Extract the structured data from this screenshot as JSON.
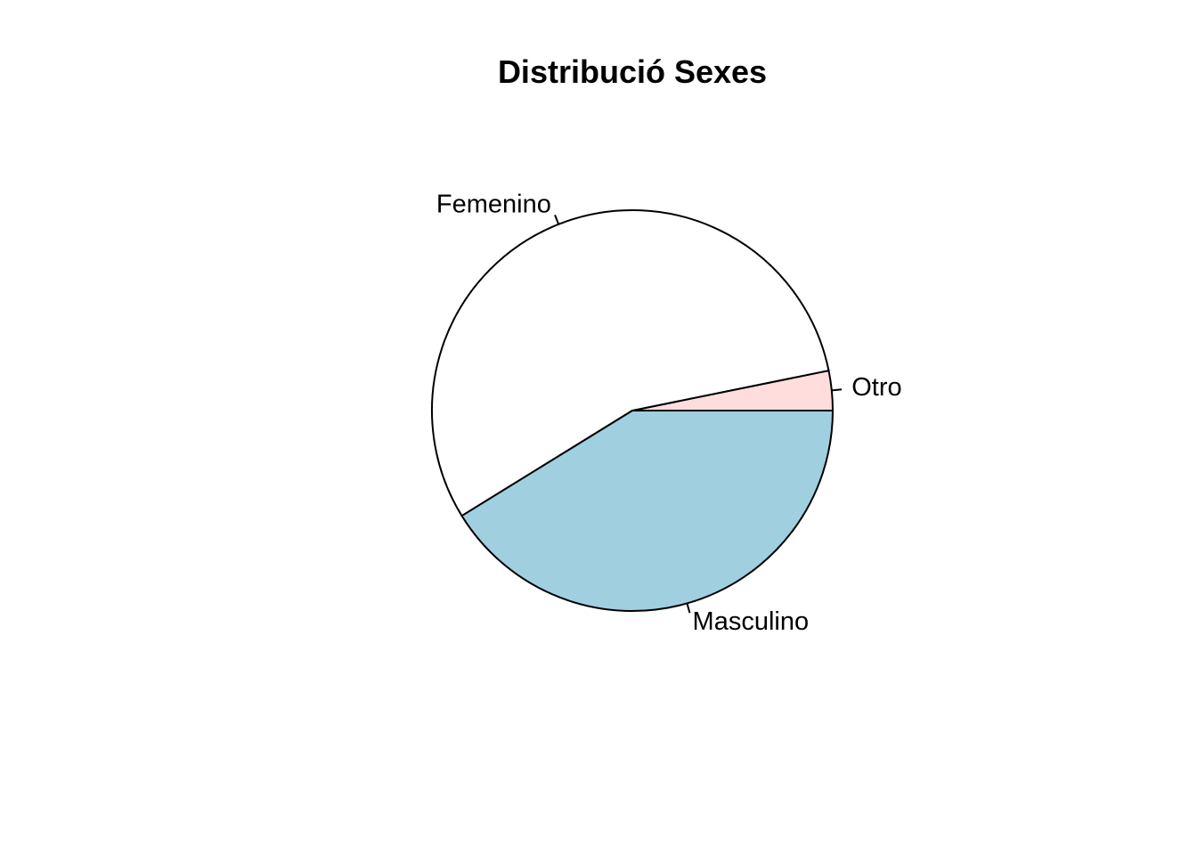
{
  "chart_data": {
    "type": "pie",
    "title": "Distribució Sexes",
    "start_angle_deg": 0,
    "direction": "counterclockwise",
    "slices": [
      {
        "label": "Otro",
        "value": 3.2,
        "color": "#ffdddd"
      },
      {
        "label": "Femenino",
        "value": 55.6,
        "color": "#ffffff"
      },
      {
        "label": "Masculino",
        "value": 41.2,
        "color": "#a0cfe0"
      }
    ]
  }
}
